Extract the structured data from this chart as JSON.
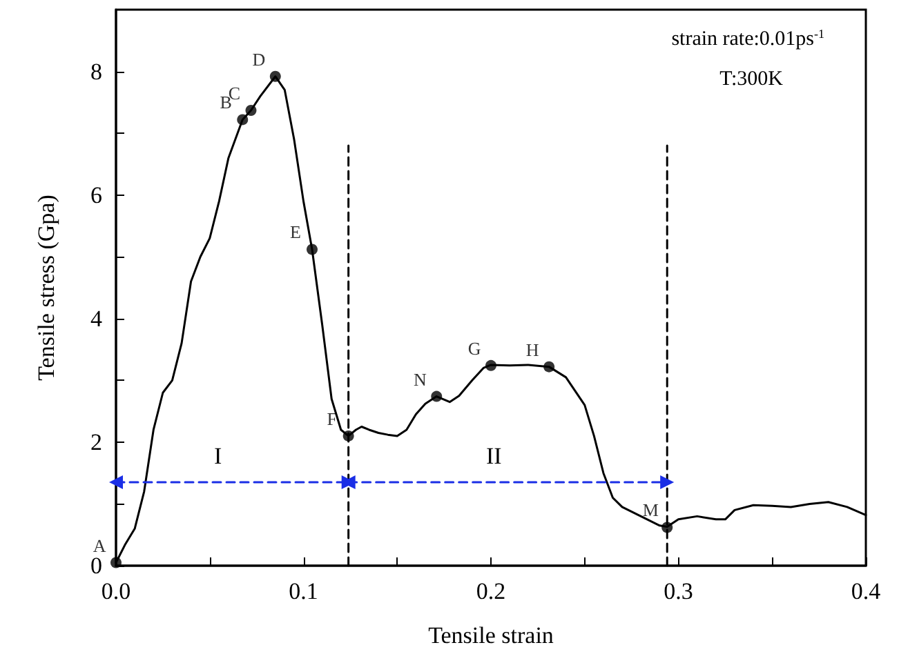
{
  "chart_data": {
    "type": "line",
    "xlabel": "Tensile strain",
    "ylabel": "Tensile stress (Gpa)",
    "xlim": [
      0,
      0.4
    ],
    "ylim": [
      0,
      9
    ],
    "xticks": [
      {
        "value": 0,
        "label": "0.0"
      },
      {
        "value": 0.05,
        "label": null
      },
      0.1,
      {
        "value": 0.15,
        "label": null
      },
      0.2,
      {
        "value": 0.25,
        "label": null
      },
      0.3,
      {
        "value": 0.35,
        "label": null
      },
      0.4
    ],
    "yticks": [
      0,
      {
        "value": 1,
        "label": null
      },
      2,
      {
        "value": 3,
        "label": null
      },
      4,
      {
        "value": 5,
        "label": null
      },
      6,
      {
        "value": 7,
        "label": null
      },
      8
    ],
    "grid": false,
    "series": [
      {
        "type": "line",
        "color": "#000000",
        "marker": "none",
        "line_style": "solid",
        "x": [
          0,
          0.005,
          0.01,
          0.015,
          0.02,
          0.025,
          0.03,
          0.035,
          0.04,
          0.045,
          0.05,
          0.055,
          0.06,
          0.0675,
          0.072,
          0.077,
          0.085,
          0.09,
          0.095,
          0.1,
          0.1046,
          0.11,
          0.115,
          0.12,
          0.124,
          0.128,
          0.131,
          0.135,
          0.14,
          0.145,
          0.15,
          0.155,
          0.16,
          0.165,
          0.171,
          0.178,
          0.183,
          0.19,
          0.196,
          0.2,
          0.21,
          0.22,
          0.231,
          0.24,
          0.25,
          0.255,
          0.26,
          0.265,
          0.27,
          0.28,
          0.29,
          0.294,
          0.3,
          0.31,
          0.32,
          0.325,
          0.33,
          0.34,
          0.35,
          0.36,
          0.37,
          0.38,
          0.39,
          0.4
        ],
        "values": [
          0.05,
          0.35,
          0.6,
          1.2,
          2.2,
          2.8,
          3.0,
          3.6,
          4.6,
          5.0,
          5.3,
          5.9,
          6.6,
          7.22,
          7.37,
          7.6,
          7.92,
          7.7,
          6.9,
          5.9,
          5.12,
          3.9,
          2.7,
          2.2,
          2.1,
          2.2,
          2.25,
          2.2,
          2.15,
          2.12,
          2.1,
          2.2,
          2.45,
          2.62,
          2.74,
          2.65,
          2.75,
          3.0,
          3.2,
          3.25,
          3.24,
          3.25,
          3.22,
          3.05,
          2.6,
          2.1,
          1.5,
          1.1,
          0.95,
          0.8,
          0.65,
          0.63,
          0.75,
          0.8,
          0.75,
          0.75,
          0.9,
          0.98,
          0.97,
          0.95,
          1.0,
          1.03,
          0.95,
          0.82
        ]
      },
      {
        "type": "scatter",
        "color": "#000000",
        "marker": "circle",
        "x": [
          0,
          0.0675,
          0.072,
          0.085,
          0.1046,
          0.124,
          0.171,
          0.2,
          0.231,
          0.294
        ],
        "values": [
          0.05,
          7.22,
          7.37,
          7.92,
          5.12,
          2.1,
          2.74,
          3.24,
          3.22,
          0.62
        ]
      },
      {
        "type": "line",
        "color": "#000000",
        "marker": "none",
        "line_style": "dashed",
        "x": [
          0.124,
          0.124
        ],
        "values": [
          0,
          6.8
        ]
      },
      {
        "type": "line",
        "color": "#000000",
        "marker": "none",
        "line_style": "dashed",
        "x": [
          0.294,
          0.294
        ],
        "values": [
          0,
          6.8
        ]
      },
      {
        "type": "line",
        "color": "#1a2ee6",
        "marker": "triangle",
        "line_style": "dashed",
        "x": [
          0,
          0.124
        ],
        "values": [
          1.35,
          1.35
        ]
      },
      {
        "type": "line",
        "color": "#1a2ee6",
        "marker": "triangle",
        "line_style": "dashed",
        "x": [
          0.124,
          0.294
        ],
        "values": [
          1.35,
          1.35
        ]
      }
    ],
    "annotations": [
      "strain rate:0.01ps$^{-1}$",
      "T:300K",
      {
        "text": "A",
        "x": 0,
        "y": 0.05
      },
      {
        "text": "B",
        "x": 0.0675,
        "y": 7.22
      },
      {
        "text": "C",
        "x": 0.072,
        "y": 7.37
      },
      {
        "text": "D",
        "x": 0.085,
        "y": 7.92
      },
      {
        "text": "E",
        "x": 0.1046,
        "y": 5.12
      },
      {
        "text": "F",
        "x": 0.124,
        "y": 2.1
      },
      {
        "text": "N",
        "x": 0.171,
        "y": 2.74
      },
      {
        "text": "G",
        "x": 0.2,
        "y": 3.24
      },
      {
        "text": "H",
        "x": 0.231,
        "y": 3.22
      },
      {
        "text": "M",
        "x": 0.294,
        "y": 0.62
      },
      "I",
      "II"
    ]
  }
}
